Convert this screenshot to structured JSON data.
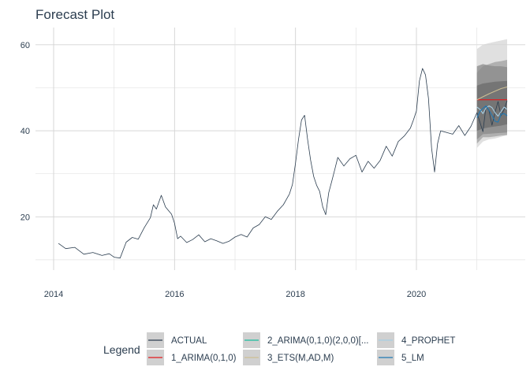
{
  "chart_data": {
    "type": "line",
    "title": "Forecast Plot",
    "xlabel": "",
    "ylabel": "",
    "x_ticks": [
      "2014",
      "2016",
      "2018",
      "2020"
    ],
    "y_ticks": [
      "20",
      "40",
      "60"
    ],
    "xlim": [
      2013.7,
      2021.8
    ],
    "ylim": [
      7.6,
      64
    ],
    "grid": true,
    "legend_position": "bottom",
    "legend_title": "Legend",
    "colors": {
      "ACTUAL": "#2c3e50",
      "1_ARIMA(0,1,0)": "#e31a1c",
      "2_ARIMA(0,1,0)(2,0,0)[...": "#18bc9c",
      "3_ETS(M,AD,M)": "#ccbe93",
      "4_PROPHET": "#a6cee3",
      "5_LM": "#1f78b4"
    },
    "series": [
      {
        "name": "ACTUAL",
        "x": [
          2014.08,
          2014.2,
          2014.35,
          2014.5,
          2014.65,
          2014.8,
          2014.92,
          2015.0,
          2015.1,
          2015.2,
          2015.3,
          2015.4,
          2015.5,
          2015.6,
          2015.65,
          2015.7,
          2015.78,
          2015.85,
          2015.95,
          2016.0,
          2016.05,
          2016.1,
          2016.2,
          2016.3,
          2016.4,
          2016.5,
          2016.6,
          2016.7,
          2016.8,
          2016.9,
          2017.0,
          2017.1,
          2017.2,
          2017.3,
          2017.4,
          2017.5,
          2017.6,
          2017.7,
          2017.8,
          2017.9,
          2017.95,
          2018.0,
          2018.05,
          2018.1,
          2018.15,
          2018.2,
          2018.25,
          2018.3,
          2018.35,
          2018.4,
          2018.45,
          2018.5,
          2018.55,
          2018.6,
          2018.65,
          2018.7,
          2018.8,
          2018.9,
          2019.0,
          2019.1,
          2019.2,
          2019.3,
          2019.4,
          2019.5,
          2019.6,
          2019.7,
          2019.8,
          2019.9,
          2019.95,
          2020.0,
          2020.05,
          2020.1,
          2020.15,
          2020.2,
          2020.25,
          2020.3,
          2020.35,
          2020.4,
          2020.5,
          2020.6,
          2020.7,
          2020.8,
          2020.9,
          2021.0,
          2021.05,
          2021.1,
          2021.15,
          2021.2,
          2021.25,
          2021.3,
          2021.35,
          2021.4,
          2021.45,
          2021.5
        ],
        "values": [
          13.8,
          12.6,
          12.9,
          11.3,
          11.7,
          11.0,
          11.4,
          10.6,
          10.4,
          14.1,
          15.2,
          14.8,
          17.5,
          19.8,
          22.8,
          21.8,
          25.0,
          22.3,
          20.6,
          18.5,
          14.9,
          15.5,
          14.0,
          14.7,
          15.8,
          14.2,
          14.9,
          14.4,
          13.8,
          14.3,
          15.3,
          15.9,
          15.3,
          17.4,
          18.2,
          20.0,
          19.4,
          21.3,
          22.8,
          25.3,
          27.5,
          32.5,
          38.0,
          42.5,
          43.6,
          38.0,
          33.2,
          29.4,
          27.3,
          25.9,
          22.3,
          20.5,
          25.6,
          28.3,
          31.0,
          33.8,
          31.8,
          33.5,
          34.3,
          30.4,
          32.9,
          31.3,
          33.1,
          36.4,
          34.1,
          37.5,
          38.8,
          40.6,
          42.5,
          44.6,
          51.6,
          54.5,
          53.0,
          47.5,
          36.0,
          30.4,
          37.0,
          40.0,
          39.6,
          39.2,
          41.2,
          38.9,
          41.0,
          44.2,
          42.0,
          39.8,
          45.6,
          44.7,
          41.3,
          44.3,
          46.8,
          43.5,
          45.0,
          47.0
        ]
      },
      {
        "name": "1_ARIMA(0,1,0)",
        "x": [
          2021.0,
          2021.5
        ],
        "values": [
          47.2,
          47.2
        ]
      },
      {
        "name": "3_ETS(M,AD,M)",
        "x": [
          2021.0,
          2021.1,
          2021.2,
          2021.3,
          2021.4,
          2021.5
        ],
        "values": [
          47.2,
          47.9,
          48.6,
          49.2,
          49.8,
          50.2
        ]
      },
      {
        "name": "4_PROPHET",
        "x": [
          2021.0,
          2021.05,
          2021.1,
          2021.15,
          2021.2,
          2021.25,
          2021.3,
          2021.35,
          2021.4,
          2021.45,
          2021.5
        ],
        "values": [
          45.5,
          45.0,
          44.0,
          45.3,
          45.8,
          45.4,
          44.2,
          43.4,
          44.5,
          45.5,
          45.0
        ]
      },
      {
        "name": "5_LM",
        "x": [
          2021.0,
          2021.05,
          2021.1,
          2021.15,
          2021.2,
          2021.25,
          2021.3,
          2021.35,
          2021.4,
          2021.45,
          2021.5
        ],
        "values": [
          43.0,
          44.5,
          45.2,
          45.8,
          44.8,
          43.6,
          42.2,
          42.0,
          43.8,
          44.0,
          43.5
        ]
      }
    ],
    "bands": [
      {
        "x": [
          2021.0,
          2021.1,
          2021.2,
          2021.3,
          2021.4,
          2021.5
        ],
        "lower": [
          36.0,
          37.5,
          38.0,
          38.2,
          38.6,
          39.0
        ],
        "upper": [
          59.0,
          60.0,
          60.4,
          60.7,
          61.0,
          61.3
        ]
      },
      {
        "x": [
          2021.0,
          2021.1,
          2021.2,
          2021.3,
          2021.4,
          2021.5
        ],
        "lower": [
          37.0,
          38.5,
          38.5,
          38.7,
          38.9,
          39.0
        ],
        "upper": [
          53.5,
          55.0,
          55.5,
          56.0,
          56.2,
          56.5
        ]
      },
      {
        "x": [
          2021.0,
          2021.1,
          2021.2,
          2021.3,
          2021.4,
          2021.5
        ],
        "lower": [
          38.0,
          39.2,
          39.3,
          39.4,
          39.5,
          39.6
        ],
        "upper": [
          55.0,
          55.5,
          55.2,
          55.0,
          55.0,
          54.8
        ]
      },
      {
        "x": [
          2021.0,
          2021.1,
          2021.2,
          2021.3,
          2021.4,
          2021.5
        ],
        "lower": [
          40.0,
          40.5,
          40.8,
          41.0,
          41.2,
          41.5
        ],
        "upper": [
          50.5,
          51.0,
          51.2,
          51.4,
          51.5,
          51.6
        ]
      }
    ]
  }
}
